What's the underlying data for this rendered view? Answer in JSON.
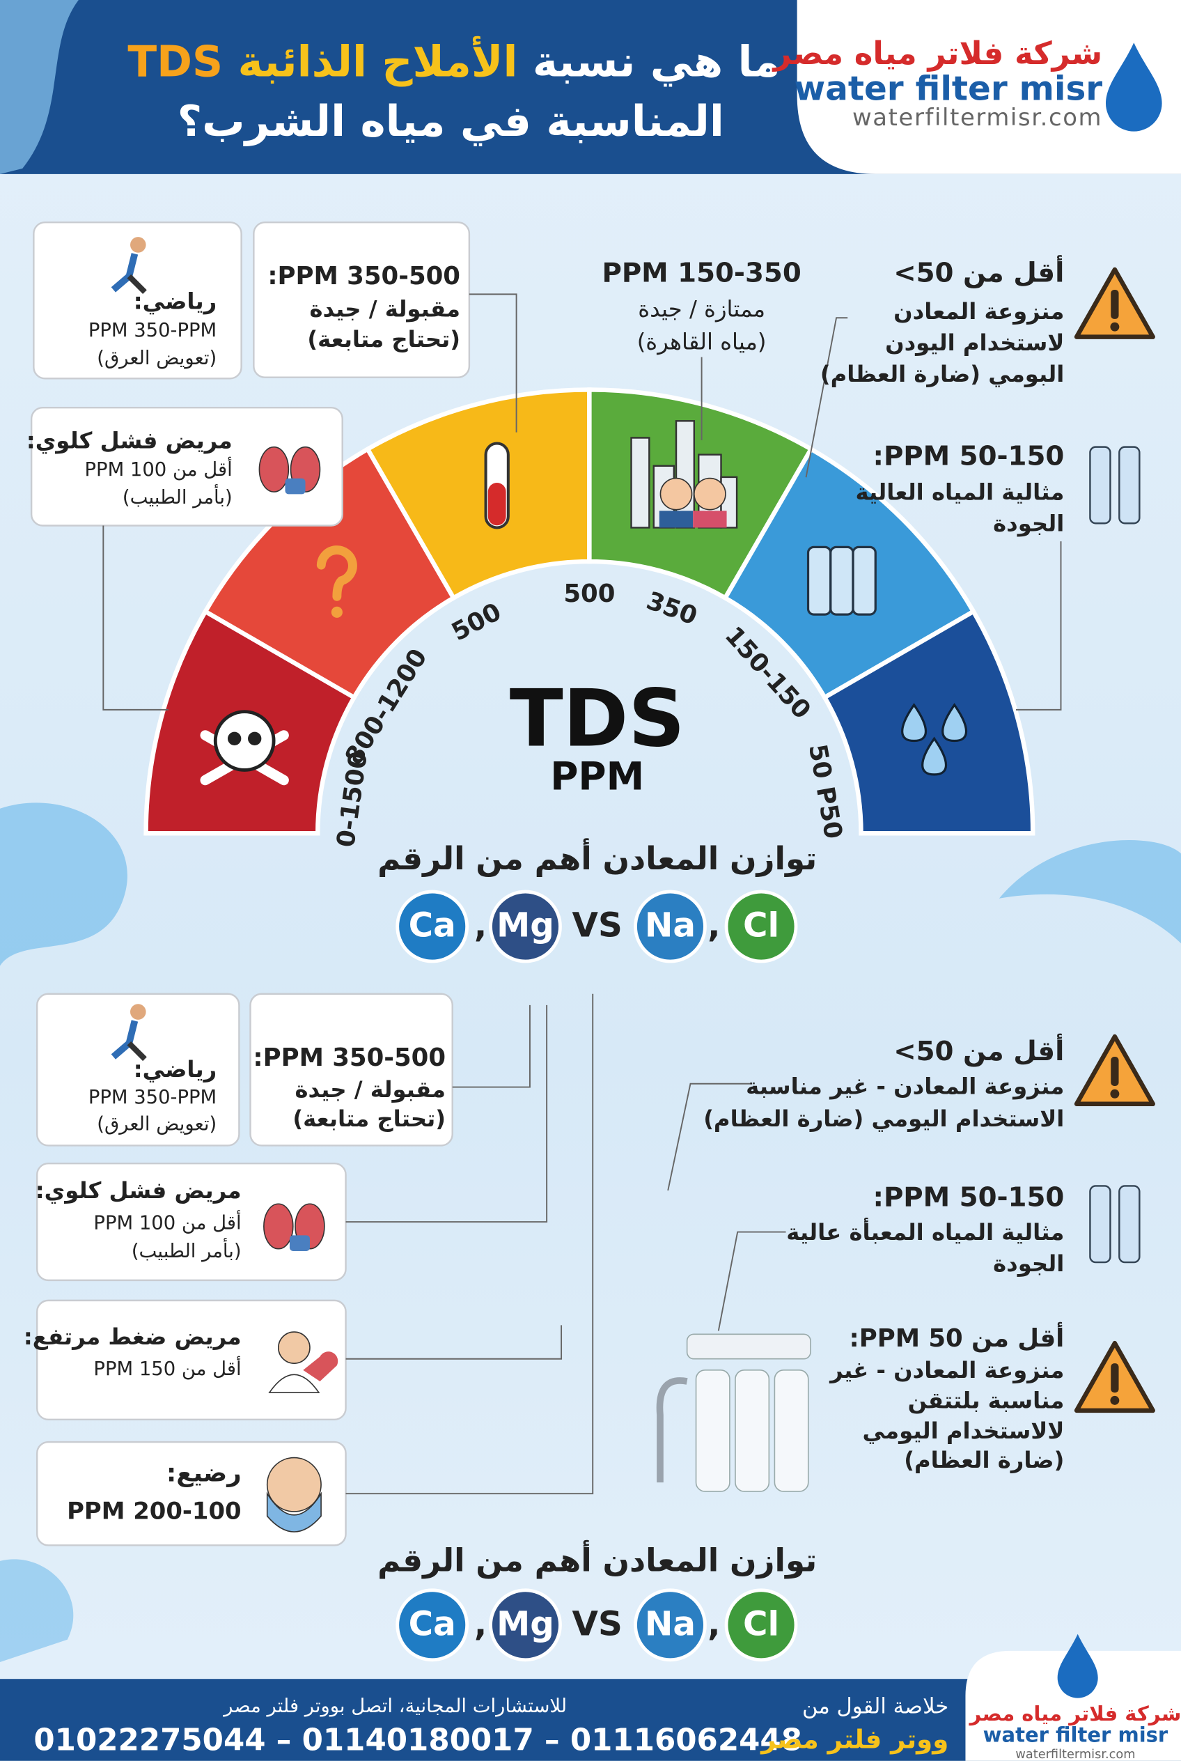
{
  "header": {
    "title_line1": [
      "ما هي نسبة",
      "الأملاح الذائبة",
      "TDS"
    ],
    "title_line2": "المناسبة في مياه الشرب؟",
    "logo": {
      "arabic": "شركة فلاتر مياه مصر",
      "english": "water filter misr",
      "website": "waterfiltermisr.com"
    }
  },
  "top": {
    "cards": [
      {
        "lines": [
          "رياضي:",
          "PPM 350-PPM",
          "(تعويض العرق)"
        ]
      },
      {
        "lines": [
          "350-500 PPM:",
          "مقبولة / جيدة",
          "(تحتاج متابعة)"
        ]
      },
      {
        "lines": [
          "مريض فشل كلوي:",
          "أقل من PPM 100",
          "(بأمر الطبيب)"
        ]
      }
    ],
    "notes": [
      {
        "lines": [
          "150-350 PPM",
          "ممتازة / جيدة",
          "(مياه القاهرة)"
        ]
      },
      {
        "lines": [
          "أقل من 50>",
          "منزوعة المعادن",
          "لاستخدام اليودن",
          "البومي (ضارة العظام)"
        ]
      },
      {
        "lines": [
          "50-150 PPM:",
          "مثالية المياه العالية",
          "الجودة"
        ]
      }
    ]
  },
  "gauge": {
    "title": "TDS",
    "unit": "PPM",
    "labels": [
      "0-1500",
      "800-1200",
      "500",
      "500",
      "350",
      "150-150",
      "50 P50"
    ]
  },
  "balance_top": {
    "title": "توازن المعادن أهم من الرقم",
    "tokens": [
      "Ca",
      ",",
      "Mg",
      "VS",
      "Na",
      ",",
      "Cl"
    ]
  },
  "bottom": {
    "cards": [
      {
        "lines": [
          "رياضي:",
          "PPM 350-PPM",
          "(تعويض العرق)"
        ]
      },
      {
        "lines": [
          "350-500 PPM:",
          "مقبولة / جيدة",
          "(تحتاج متابعة)"
        ]
      },
      {
        "lines": [
          "مريض فشل كلوي:",
          "أقل من PPM 100",
          "(بأمر الطبيب)"
        ]
      },
      {
        "lines": [
          "مريض ضغط مرتفع:",
          "أقل من PPM 150"
        ]
      },
      {
        "lines": [
          "رضيع:",
          "PPM 200-100"
        ]
      }
    ],
    "notes": [
      {
        "lines": [
          "أقل من 50>",
          "منزوعة المعادن - غير مناسبة",
          "الاستخدام اليومي (ضارة العظام)"
        ]
      },
      {
        "lines": [
          "50-150 PPM:",
          "مثالية المياه المعبأة عالية",
          "الجودة"
        ]
      },
      {
        "lines": [
          "أقل من PPM 50:",
          "منزوعة المعادن - غير",
          "مناسبة بلتتقن",
          "لالاستخدام اليومي",
          "(ضارة العظام)"
        ]
      }
    ]
  },
  "balance_bottom": {
    "title": "توازن المعادن أهم من الرقم",
    "tokens": [
      "Ca",
      ",",
      "Mg",
      "VS",
      "Na",
      ",",
      "Cl"
    ]
  },
  "footer": {
    "consult": "للاستشارات المجانية، اتصل بووتر فلتر مصر",
    "phones": "01022275044 – 01140180017 – 01116062448",
    "summary": [
      "خلاصة القول من",
      "ووتر فلتر مصر"
    ],
    "logo": {
      "arabic": "شركة فلاتر مياه مصر",
      "english": "water filter misr",
      "website": "waterfiltermisr.com"
    }
  }
}
